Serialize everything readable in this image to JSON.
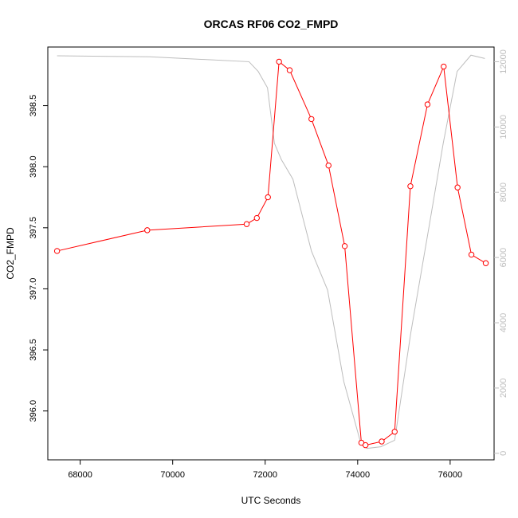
{
  "chart_data": {
    "type": "line",
    "title": "ORCAS RF06 CO2_FMPD",
    "xlabel": "UTC Seconds",
    "ylabel": "CO2_FMPD",
    "xlim": [
      67300,
      76950
    ],
    "ylim": [
      395.6,
      398.98
    ],
    "y2lim": [
      -200,
      12450
    ],
    "x_ticks": [
      68000,
      70000,
      72000,
      74000,
      76000
    ],
    "y_ticks": [
      396.0,
      396.5,
      397.0,
      397.5,
      398.0,
      398.5
    ],
    "y2_ticks": [
      0,
      2000,
      4000,
      6000,
      8000,
      10000,
      12000
    ],
    "grid": false,
    "series": [
      {
        "axis": "left",
        "color": "#ff0000",
        "style": "line-markers",
        "points": [
          [
            67500,
            397.31
          ],
          [
            69450,
            397.48
          ],
          [
            71600,
            397.53
          ],
          [
            71820,
            397.58
          ],
          [
            72060,
            397.75
          ],
          [
            72300,
            398.86
          ],
          [
            72530,
            398.79
          ],
          [
            73000,
            398.39
          ],
          [
            73370,
            398.01
          ],
          [
            73720,
            397.35
          ],
          [
            74080,
            395.74
          ],
          [
            74170,
            395.72
          ],
          [
            74520,
            395.75
          ],
          [
            74800,
            395.83
          ],
          [
            75140,
            397.84
          ],
          [
            75510,
            398.51
          ],
          [
            75860,
            398.82
          ],
          [
            76160,
            397.83
          ],
          [
            76460,
            397.28
          ],
          [
            76770,
            397.21
          ]
        ]
      },
      {
        "axis": "right",
        "color": "#bdbdbd",
        "style": "line",
        "points": [
          [
            67500,
            12180
          ],
          [
            69500,
            12150
          ],
          [
            71650,
            12000
          ],
          [
            71850,
            11700
          ],
          [
            72050,
            11200
          ],
          [
            72200,
            9500
          ],
          [
            72350,
            9000
          ],
          [
            72600,
            8400
          ],
          [
            73000,
            6200
          ],
          [
            73350,
            5000
          ],
          [
            73700,
            2200
          ],
          [
            74050,
            400
          ],
          [
            74200,
            150
          ],
          [
            74500,
            200
          ],
          [
            74800,
            400
          ],
          [
            75150,
            3700
          ],
          [
            75550,
            7000
          ],
          [
            75850,
            9500
          ],
          [
            76150,
            11700
          ],
          [
            76450,
            12200
          ],
          [
            76750,
            12100
          ]
        ]
      }
    ]
  }
}
